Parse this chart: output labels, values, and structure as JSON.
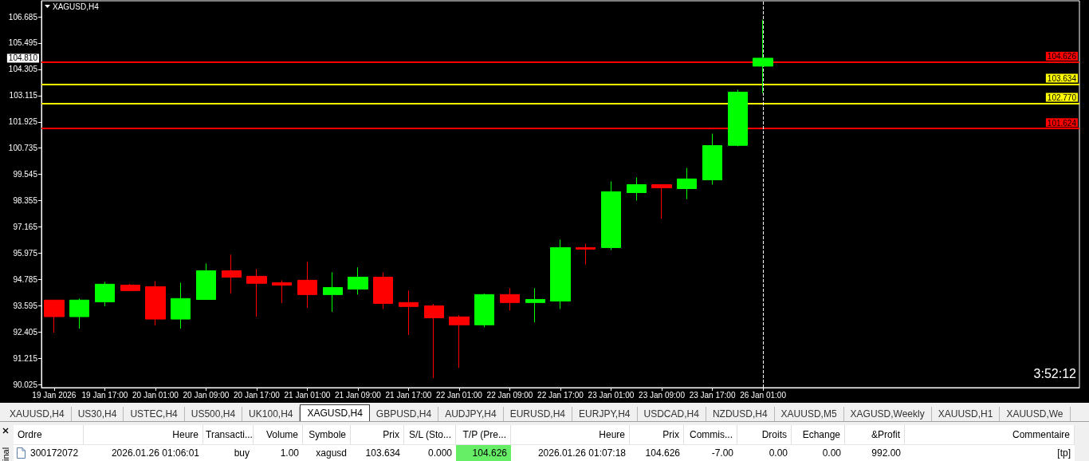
{
  "chart_data": [
    {
      "type": "candlestick",
      "title": "XAGUSD,H4",
      "categories": [
        "19 Jan 2026",
        null,
        "19 Jan 17:00",
        null,
        "20 Jan 01:00",
        null,
        "20 Jan 09:00",
        null,
        "20 Jan 17:00",
        null,
        "21 Jan 01:00",
        null,
        "21 Jan 09:00",
        null,
        "21 Jan 17:00",
        null,
        "22 Jan 01:00",
        null,
        "22 Jan 09:00",
        null,
        "22 Jan 17:00",
        null,
        "23 Jan 01:00",
        null,
        "23 Jan 09:00",
        null,
        "23 Jan 17:00",
        null,
        "26 Jan 01:00"
      ],
      "ohlc": [
        [
          93.85,
          93.85,
          92.38,
          93.1
        ],
        [
          93.1,
          93.92,
          92.56,
          93.85
        ],
        [
          93.77,
          94.68,
          93.57,
          94.57
        ],
        [
          94.53,
          94.58,
          94.28,
          94.28
        ],
        [
          94.46,
          94.71,
          92.7,
          92.99
        ],
        [
          92.99,
          94.64,
          92.56,
          93.92
        ],
        [
          93.88,
          95.51,
          93.88,
          95.18
        ],
        [
          95.18,
          95.91,
          94.14,
          94.89
        ],
        [
          94.93,
          95.26,
          93.1,
          94.61
        ],
        [
          94.64,
          94.75,
          93.71,
          94.53
        ],
        [
          94.75,
          95.58,
          93.5,
          94.1
        ],
        [
          94.1,
          95.11,
          93.32,
          94.42
        ],
        [
          94.35,
          95.33,
          94.1,
          94.89
        ],
        [
          94.89,
          95.11,
          93.45,
          93.7
        ],
        [
          93.74,
          94.28,
          92.27,
          93.56
        ],
        [
          93.59,
          93.67,
          90.32,
          93.05
        ],
        [
          93.09,
          93.16,
          90.78,
          92.73
        ],
        [
          92.73,
          94.14,
          92.62,
          94.1
        ],
        [
          94.1,
          94.39,
          93.38,
          93.74
        ],
        [
          93.74,
          94.39,
          92.84,
          93.88
        ],
        [
          93.81,
          96.59,
          93.45,
          96.23
        ],
        [
          96.23,
          96.41,
          95.47,
          96.16
        ],
        [
          96.23,
          99.23,
          96.12,
          98.76
        ],
        [
          98.72,
          99.41,
          98.36,
          99.08
        ],
        [
          99.08,
          99.08,
          97.53,
          98.94
        ],
        [
          98.9,
          99.84,
          98.43,
          99.34
        ],
        [
          99.3,
          101.39,
          99.08,
          100.85
        ],
        [
          100.86,
          103.38,
          100.82,
          103.27
        ],
        [
          104.45,
          106.55,
          103.23,
          104.81
        ]
      ],
      "colors": [
        "#ff0000",
        "#00ff00",
        "#00ff00",
        "#ff0000",
        "#ff0000",
        "#00ff00",
        "#00ff00",
        "#ff0000",
        "#ff0000",
        "#ff0000",
        "#ff0000",
        "#00ff00",
        "#00ff00",
        "#ff0000",
        "#ff0000",
        "#ff0000",
        "#ff0000",
        "#00ff00",
        "#ff0000",
        "#00ff00",
        "#00ff00",
        "#ff0000",
        "#00ff00",
        "#00ff00",
        "#ff0000",
        "#00ff00",
        "#00ff00",
        "#00ff00",
        "#00ff00"
      ],
      "ylim": [
        89.885,
        107.41
      ],
      "yticks": [
        90.025,
        91.215,
        92.405,
        93.595,
        94.785,
        95.975,
        97.165,
        98.355,
        99.545,
        100.735,
        101.925,
        103.115,
        104.305,
        105.495,
        106.685
      ],
      "ref_lines": [
        {
          "axis": "y",
          "value": 104.626,
          "label": "104.626",
          "color": "#ff0000"
        },
        {
          "axis": "y",
          "value": 103.634,
          "label": "103.634",
          "color": "#ffff00"
        },
        {
          "axis": "y",
          "value": 102.77,
          "label": "102.770",
          "color": "#ffff00"
        },
        {
          "axis": "y",
          "value": 101.624,
          "label": "101.624",
          "color": "#ff0000"
        },
        {
          "axis": "x",
          "value": "26 Jan 01:00",
          "color": "#ffffff",
          "line_style": "dashed"
        }
      ],
      "annotations": [
        "104.810",
        "3:52:12"
      ],
      "grid": false
    },
    {
      "type": "other",
      "annotations": [
        "XAUUSD,H4",
        "US30,H4",
        "USTEC,H4",
        "US500,H4",
        "UK100,H4",
        "XAGUSD,H4",
        "GBPUSD,H4",
        "AUDJPY,H4",
        "EURUSD,H4",
        "EURJPY,H4",
        "USDCAD,H4",
        "NZDUSD,H4",
        "XAUUSD,M5",
        "XAGUSD,Weekly",
        "XAUUSD,H1",
        "XAUUSD,We"
      ]
    },
    {
      "type": "other",
      "title": "inal",
      "annotations": [
        "Ordre",
        "Heure",
        "Transacti...",
        "Volume",
        "Symbole",
        "Prix",
        "S/L (Sto...",
        "T/P (Pre...",
        "Heure",
        "Prix",
        "Commis...",
        "Droits",
        "Echange",
        "&Profit",
        "Commentaire",
        "300172072",
        "2026.01.26 01:06:01",
        "buy",
        "1.00",
        "xagusd",
        "103.634",
        "0.000",
        "104.626",
        "2026.01.26 01:07:18",
        "104.626",
        "-7.00",
        "0.00",
        "0.00",
        "992.00",
        "[tp]"
      ]
    }
  ]
}
